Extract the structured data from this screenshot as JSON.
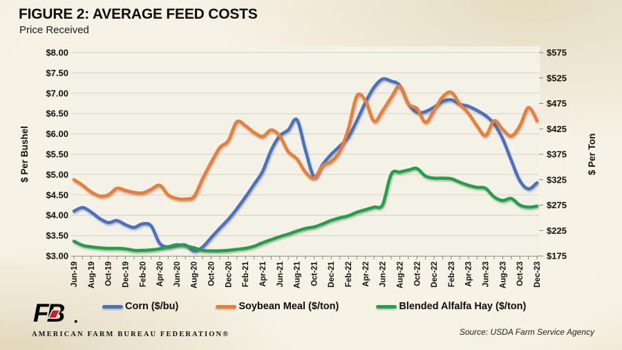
{
  "title": "FIGURE 2: AVERAGE FEED COSTS",
  "subtitle": "Price Received",
  "legend": [
    {
      "label": "Corn ($/bu)",
      "color": "#4472c4"
    },
    {
      "label": "Soybean Meal ($/ton)",
      "color": "#ed7d31"
    },
    {
      "label": "Blended Alfalfa Hay ($/ton)",
      "color": "#1ea34a"
    }
  ],
  "footer": {
    "org": "AMERICAN FARM BUREAU FEDERATION®",
    "logo_text": "FB",
    "source": "Source: USDA Farm Service Agency"
  },
  "chart_data": {
    "type": "line",
    "title": "FIGURE 2: AVERAGE FEED COSTS",
    "subtitle": "Price Received",
    "x_tick_every": 2,
    "grid": true,
    "left_axis": {
      "label": "$ Per Bushel",
      "min": 3.0,
      "max": 8.0,
      "step": 0.5,
      "tick_labels": [
        "$8.00",
        "$7.50",
        "$7.00",
        "$6.50",
        "$6.00",
        "$5.50",
        "$5.00",
        "$4.50",
        "$4.00",
        "$3.50",
        "$3.00"
      ],
      "tick_values": [
        8.0,
        7.5,
        7.0,
        6.5,
        6.0,
        5.5,
        5.0,
        4.5,
        4.0,
        3.5,
        3.0
      ]
    },
    "right_axis": {
      "label": "$ Per Ton",
      "min": 175,
      "max": 575,
      "step": 50,
      "tick_labels": [
        "$575",
        "$525",
        "$475",
        "$425",
        "$375",
        "$325",
        "$275",
        "$225",
        "$175"
      ],
      "tick_values": [
        575,
        525,
        475,
        425,
        375,
        325,
        275,
        225,
        175
      ]
    },
    "x": [
      "Jun-19",
      "Jul-19",
      "Aug-19",
      "Sep-19",
      "Oct-19",
      "Nov-19",
      "Dec-19",
      "Jan-20",
      "Feb-20",
      "Mar-20",
      "Apr-20",
      "May-20",
      "Jun-20",
      "Jul-20",
      "Aug-20",
      "Sep-20",
      "Oct-20",
      "Nov-20",
      "Dec-20",
      "Jan-21",
      "Feb-21",
      "Mar-21",
      "Apr-21",
      "May-21",
      "Jun-21",
      "Jul-21",
      "Aug-21",
      "Sep-21",
      "Oct-21",
      "Nov-21",
      "Dec-21",
      "Jan-22",
      "Feb-22",
      "Mar-22",
      "Apr-22",
      "May-22",
      "Jun-22",
      "Jul-22",
      "Aug-22",
      "Sep-22",
      "Oct-22",
      "Nov-22",
      "Dec-22",
      "Jan-23",
      "Feb-23",
      "Mar-23",
      "Apr-23",
      "May-23",
      "Jun-23",
      "Jul-23",
      "Aug-23",
      "Sep-23",
      "Oct-23",
      "Nov-23",
      "Dec-23"
    ],
    "series": [
      {
        "name": "Corn ($/bu)",
        "axis": "left",
        "color": "#4472c4",
        "values": [
          4.1,
          4.19,
          4.08,
          3.92,
          3.82,
          3.87,
          3.77,
          3.7,
          3.79,
          3.74,
          3.31,
          3.22,
          3.25,
          3.27,
          3.12,
          3.22,
          3.45,
          3.68,
          3.9,
          4.16,
          4.45,
          4.76,
          5.08,
          5.6,
          5.95,
          6.1,
          6.35,
          5.6,
          4.95,
          5.25,
          5.5,
          5.7,
          5.92,
          6.33,
          6.78,
          7.15,
          7.35,
          7.3,
          7.19,
          6.74,
          6.53,
          6.55,
          6.66,
          6.8,
          6.84,
          6.73,
          6.68,
          6.58,
          6.45,
          6.25,
          5.88,
          5.35,
          4.85,
          4.65,
          4.8
        ]
      },
      {
        "name": "Soybean Meal ($/ton)",
        "axis": "right",
        "color": "#ed7d31",
        "values": [
          325,
          314,
          301,
          293,
          295,
          308,
          304,
          300,
          299,
          306,
          314,
          295,
          288,
          287,
          292,
          327,
          359,
          388,
          402,
          439,
          431,
          418,
          410,
          423,
          411,
          380,
          366,
          340,
          328,
          352,
          361,
          381,
          425,
          490,
          480,
          440,
          461,
          487,
          509,
          474,
          465,
          438,
          462,
          488,
          497,
          474,
          456,
          431,
          412,
          441,
          424,
          411,
          431,
          467,
          441
        ]
      },
      {
        "name": "Blended Alfalfa Hay ($/ton)",
        "axis": "right",
        "color": "#1ea34a",
        "values": [
          204,
          196,
          193,
          191,
          190,
          190,
          189,
          186,
          186,
          187,
          189,
          193,
          197,
          195,
          191,
          186,
          185,
          185,
          186,
          188,
          190,
          194,
          201,
          207,
          213,
          218,
          224,
          229,
          232,
          238,
          245,
          250,
          254,
          261,
          266,
          271,
          276,
          336,
          340,
          344,
          347,
          332,
          328,
          328,
          327,
          320,
          314,
          310,
          308,
          291,
          284,
          288,
          275,
          271,
          273
        ]
      }
    ]
  }
}
